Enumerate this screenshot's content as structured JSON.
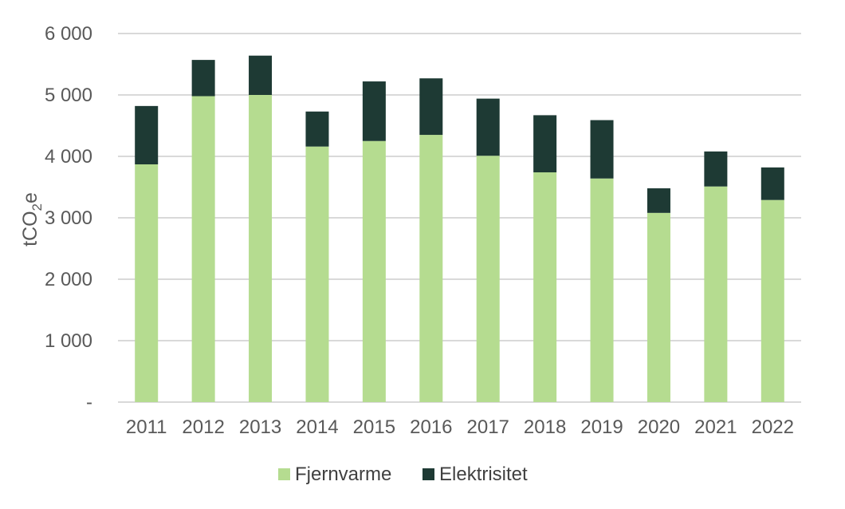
{
  "chart_data": {
    "type": "bar",
    "stacked": true,
    "title": "",
    "xlabel": "",
    "ylabel": {
      "main": "tCO",
      "sub": "2",
      "suffix": "e"
    },
    "categories": [
      "2011",
      "2012",
      "2013",
      "2014",
      "2015",
      "2016",
      "2017",
      "2018",
      "2019",
      "2020",
      "2021",
      "2022"
    ],
    "series": [
      {
        "name": "Fjernvarme",
        "color": "#b5dc90",
        "values": [
          3870,
          4980,
          5000,
          4160,
          4250,
          4350,
          4010,
          3740,
          3640,
          3080,
          3510,
          3290
        ]
      },
      {
        "name": "Elektrisitet",
        "color": "#1e3a34",
        "values": [
          950,
          590,
          640,
          570,
          970,
          920,
          930,
          930,
          950,
          400,
          570,
          530
        ]
      }
    ],
    "ylim": [
      0,
      6000
    ],
    "yticks": [
      0,
      1000,
      2000,
      3000,
      4000,
      5000,
      6000
    ],
    "ytick_labels": [
      "-",
      "1 000",
      "2 000",
      "3 000",
      "4 000",
      "5 000",
      "6 000"
    ],
    "grid": true,
    "legend_position": "bottom"
  }
}
